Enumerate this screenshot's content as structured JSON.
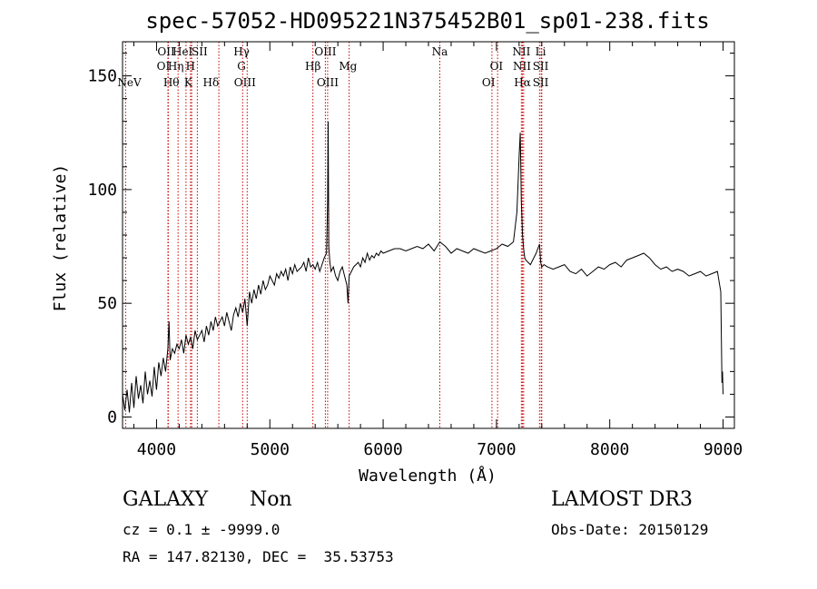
{
  "chart_data": {
    "type": "line",
    "title": "spec-57052-HD095221N375452B01_sp01-238.fits",
    "xlabel": "Wavelength (Å)",
    "ylabel": "Flux (relative)",
    "xlim": [
      3700,
      9100
    ],
    "ylim": [
      -5,
      165
    ],
    "xticks": [
      4000,
      5000,
      6000,
      7000,
      8000,
      9000
    ],
    "yticks": [
      0,
      50,
      100,
      150
    ],
    "grid": false,
    "line_color": "#000000",
    "marker_color": "#cc0000",
    "series": [
      {
        "x": [
          3700,
          3720,
          3740,
          3760,
          3780,
          3800,
          3820,
          3840,
          3860,
          3880,
          3900,
          3920,
          3940,
          3960,
          3980,
          4000,
          4020,
          4040,
          4060,
          4080,
          4100,
          4110,
          4120,
          4140,
          4160,
          4180,
          4200,
          4220,
          4240,
          4260,
          4280,
          4300,
          4320,
          4340,
          4360,
          4380,
          4400,
          4420,
          4440,
          4460,
          4480,
          4500,
          4520,
          4540,
          4560,
          4580,
          4600,
          4620,
          4640,
          4660,
          4680,
          4700,
          4720,
          4740,
          4760,
          4780,
          4800,
          4820,
          4840,
          4860,
          4880,
          4900,
          4920,
          4940,
          4960,
          4980,
          5000,
          5020,
          5040,
          5060,
          5080,
          5100,
          5120,
          5140,
          5160,
          5180,
          5200,
          5220,
          5240,
          5260,
          5280,
          5300,
          5320,
          5340,
          5360,
          5380,
          5400,
          5420,
          5440,
          5460,
          5480,
          5500,
          5510,
          5515,
          5520,
          5530,
          5540,
          5560,
          5580,
          5600,
          5620,
          5640,
          5660,
          5680,
          5690,
          5700,
          5720,
          5740,
          5760,
          5780,
          5800,
          5820,
          5840,
          5860,
          5880,
          5900,
          5920,
          5940,
          5960,
          5980,
          6000,
          6050,
          6100,
          6150,
          6200,
          6250,
          6300,
          6350,
          6400,
          6450,
          6500,
          6550,
          6600,
          6650,
          6700,
          6750,
          6800,
          6850,
          6900,
          6950,
          7000,
          7050,
          7100,
          7150,
          7180,
          7200,
          7210,
          7220,
          7230,
          7240,
          7250,
          7260,
          7280,
          7300,
          7350,
          7380,
          7390,
          7400,
          7420,
          7450,
          7500,
          7550,
          7600,
          7650,
          7700,
          7750,
          7800,
          7850,
          7900,
          7950,
          8000,
          8050,
          8100,
          8150,
          8200,
          8250,
          8300,
          8350,
          8400,
          8450,
          8500,
          8550,
          8600,
          8650,
          8700,
          8750,
          8800,
          8850,
          8900,
          8950,
          8980,
          8990,
          8995,
          9000
        ],
        "y": [
          10,
          3,
          12,
          2,
          15,
          4,
          18,
          8,
          14,
          6,
          20,
          10,
          16,
          9,
          22,
          12,
          24,
          18,
          26,
          20,
          30,
          42,
          25,
          30,
          28,
          32,
          30,
          34,
          28,
          36,
          32,
          35,
          30,
          38,
          34,
          36,
          38,
          33,
          40,
          36,
          42,
          38,
          44,
          40,
          42,
          44,
          40,
          46,
          42,
          38,
          45,
          48,
          44,
          50,
          46,
          52,
          40,
          55,
          50,
          56,
          52,
          58,
          54,
          60,
          56,
          58,
          62,
          60,
          58,
          63,
          61,
          64,
          62,
          65,
          60,
          66,
          63,
          67,
          64,
          65,
          66,
          68,
          64,
          70,
          66,
          67,
          65,
          68,
          64,
          67,
          70,
          72,
          95,
          130,
          75,
          68,
          64,
          66,
          62,
          60,
          64,
          66,
          62,
          58,
          50,
          62,
          64,
          66,
          67,
          68,
          66,
          70,
          68,
          72,
          69,
          71,
          70,
          72,
          71,
          73,
          72,
          73,
          74,
          74,
          73,
          74,
          75,
          74,
          76,
          73,
          77,
          75,
          72,
          74,
          73,
          72,
          74,
          73,
          72,
          73,
          74,
          76,
          75,
          77,
          90,
          115,
          125,
          95,
          80,
          74,
          70,
          69,
          68,
          67,
          72,
          76,
          68,
          66,
          67,
          66,
          65,
          66,
          67,
          64,
          63,
          65,
          62,
          64,
          66,
          65,
          67,
          68,
          66,
          69,
          70,
          71,
          72,
          70,
          67,
          65,
          66,
          64,
          65,
          64,
          62,
          63,
          64,
          62,
          63,
          64,
          55,
          15,
          20,
          10
        ]
      }
    ],
    "lines": [
      {
        "wl": 3727,
        "labels": [
          "NeV"
        ]
      },
      {
        "wl": 4101,
        "labels": [
          "OII"
        ]
      },
      {
        "wl": 4102,
        "labels": [
          "OII"
        ]
      },
      {
        "wl": 4103,
        "labels": [
          "Hθ"
        ]
      },
      {
        "wl": 4190,
        "labels": [
          "Hη"
        ]
      },
      {
        "wl": 4260,
        "labels": [
          "HeI"
        ]
      },
      {
        "wl": 4300,
        "labels": [
          "H"
        ]
      },
      {
        "wl": 4310,
        "labels": [
          "K"
        ]
      },
      {
        "wl": 4360,
        "labels": [
          "SII"
        ]
      },
      {
        "wl": 4550,
        "labels": [
          "Hδ"
        ]
      },
      {
        "wl": 4760,
        "labels": [
          "Hγ",
          "G"
        ]
      },
      {
        "wl": 4800,
        "labels": [
          "OIII"
        ]
      },
      {
        "wl": 5380,
        "labels": [
          "Hβ"
        ]
      },
      {
        "wl": 5490,
        "labels": [
          "OIII"
        ]
      },
      {
        "wl": 5510,
        "labels": [
          "OIII"
        ]
      },
      {
        "wl": 5700,
        "labels": [
          "Mg"
        ]
      },
      {
        "wl": 6500,
        "labels": [
          "Na"
        ]
      },
      {
        "wl": 6960,
        "labels": [
          "OI"
        ]
      },
      {
        "wl": 7010,
        "labels": [
          "OI"
        ]
      },
      {
        "wl": 7220,
        "labels": [
          "NII"
        ]
      },
      {
        "wl": 7230,
        "labels": [
          "NII"
        ]
      },
      {
        "wl": 7240,
        "labels": [
          "Hα"
        ]
      },
      {
        "wl": 7380,
        "labels": [
          "SII"
        ]
      },
      {
        "wl": 7395,
        "labels": [
          "SII"
        ]
      },
      {
        "wl": 7400,
        "labels": [
          "Li"
        ]
      }
    ],
    "line_label_rows": [
      {
        "text": "OII",
        "wl": 4085,
        "row": 0
      },
      {
        "text": "HeI",
        "wl": 4230,
        "row": 0
      },
      {
        "text": "SII",
        "wl": 4380,
        "row": 0
      },
      {
        "text": "Hγ",
        "wl": 4750,
        "row": 0
      },
      {
        "text": "OIII",
        "wl": 5490,
        "row": 0
      },
      {
        "text": "Na",
        "wl": 6500,
        "row": 0
      },
      {
        "text": "NII",
        "wl": 7220,
        "row": 0
      },
      {
        "text": "Li",
        "wl": 7390,
        "row": 0
      },
      {
        "text": "OI",
        "wl": 4060,
        "row": 1
      },
      {
        "text": "Hη",
        "wl": 4170,
        "row": 1
      },
      {
        "text": "H",
        "wl": 4300,
        "row": 1
      },
      {
        "text": "G",
        "wl": 4750,
        "row": 1
      },
      {
        "text": "Hβ",
        "wl": 5380,
        "row": 1
      },
      {
        "text": "Mg",
        "wl": 5690,
        "row": 1
      },
      {
        "text": "OI",
        "wl": 7000,
        "row": 1
      },
      {
        "text": "NII",
        "wl": 7225,
        "row": 1
      },
      {
        "text": "SII",
        "wl": 7390,
        "row": 1
      },
      {
        "text": "NeV",
        "wl": 3760,
        "row": 2
      },
      {
        "text": "Hθ",
        "wl": 4130,
        "row": 2
      },
      {
        "text": "K",
        "wl": 4280,
        "row": 2
      },
      {
        "text": "Hδ",
        "wl": 4480,
        "row": 2
      },
      {
        "text": "OIII",
        "wl": 4780,
        "row": 2
      },
      {
        "text": "OIII",
        "wl": 5510,
        "row": 2
      },
      {
        "text": "OI",
        "wl": 6930,
        "row": 2
      },
      {
        "text": "Hα",
        "wl": 7230,
        "row": 2
      },
      {
        "text": "SII",
        "wl": 7390,
        "row": 2
      }
    ]
  },
  "info": {
    "object_class": "GALAXY",
    "subclass": "Non",
    "survey": "LAMOST DR3",
    "cz": "cz = 0.1 ± -9999.0",
    "obs_date": "Obs-Date: 20150129",
    "coords": "RA = 147.82130, DEC =  35.53753"
  }
}
